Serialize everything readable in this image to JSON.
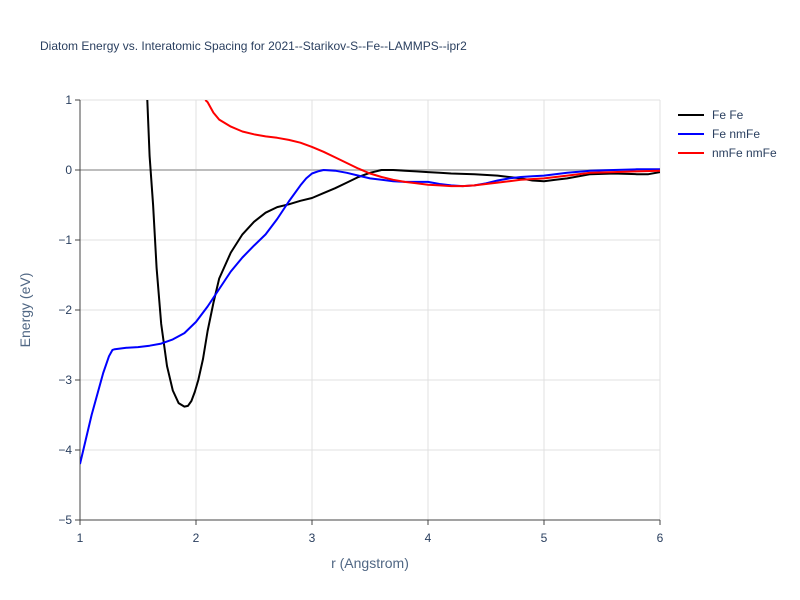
{
  "chart_data": {
    "type": "line",
    "title": "Diatom Energy vs. Interatomic Spacing for 2021--Starikov-S--Fe--LAMMPS--ipr2",
    "xlabel": "r (Angstrom)",
    "ylabel": "Energy (eV)",
    "xlim": [
      1,
      6
    ],
    "ylim": [
      -5,
      1
    ],
    "xticks": [
      1,
      2,
      3,
      4,
      5,
      6
    ],
    "xtick_labels": [
      "1",
      "2",
      "3",
      "4",
      "5",
      "6"
    ],
    "yticks": [
      -5,
      -4,
      -3,
      -2,
      -1,
      0,
      1
    ],
    "ytick_labels": [
      "−5",
      "−4",
      "−3",
      "−2",
      "−1",
      "0",
      "1"
    ],
    "grid": true,
    "legend_position": "top-right",
    "series": [
      {
        "name": "Fe Fe",
        "color": "#000000",
        "x": [
          1.58,
          1.6,
          1.63,
          1.66,
          1.7,
          1.75,
          1.8,
          1.85,
          1.9,
          1.93,
          1.96,
          1.99,
          2.02,
          2.06,
          2.1,
          2.15,
          2.2,
          2.3,
          2.4,
          2.5,
          2.6,
          2.7,
          2.8,
          2.9,
          3.0,
          3.1,
          3.2,
          3.3,
          3.4,
          3.5,
          3.6,
          3.7,
          3.8,
          3.9,
          4.0,
          4.1,
          4.2,
          4.4,
          4.6,
          4.8,
          4.9,
          5.0,
          5.1,
          5.2,
          5.4,
          5.6,
          5.8,
          5.9,
          6.0
        ],
        "y": [
          1.0,
          0.2,
          -0.5,
          -1.4,
          -2.2,
          -2.8,
          -3.15,
          -3.33,
          -3.38,
          -3.37,
          -3.3,
          -3.17,
          -3.0,
          -2.7,
          -2.3,
          -1.9,
          -1.55,
          -1.18,
          -0.92,
          -0.74,
          -0.61,
          -0.53,
          -0.49,
          -0.44,
          -0.4,
          -0.33,
          -0.26,
          -0.18,
          -0.1,
          -0.04,
          0.0,
          0.0,
          -0.01,
          -0.02,
          -0.03,
          -0.04,
          -0.05,
          -0.06,
          -0.08,
          -0.12,
          -0.15,
          -0.16,
          -0.14,
          -0.12,
          -0.06,
          -0.05,
          -0.06,
          -0.06,
          -0.03
        ]
      },
      {
        "name": "Fe nmFe",
        "color": "#0000ff",
        "x": [
          1.0,
          1.05,
          1.1,
          1.15,
          1.2,
          1.25,
          1.28,
          1.3,
          1.4,
          1.5,
          1.6,
          1.7,
          1.8,
          1.9,
          2.0,
          2.1,
          2.2,
          2.3,
          2.4,
          2.5,
          2.6,
          2.7,
          2.8,
          2.9,
          2.95,
          3.0,
          3.05,
          3.1,
          3.2,
          3.3,
          3.4,
          3.5,
          3.6,
          3.7,
          3.8,
          3.9,
          4.0,
          4.1,
          4.2,
          4.3,
          4.4,
          4.5,
          4.6,
          4.7,
          4.8,
          4.9,
          5.0,
          5.2,
          5.4,
          5.6,
          5.8,
          6.0
        ],
        "y": [
          -4.2,
          -3.85,
          -3.5,
          -3.2,
          -2.9,
          -2.66,
          -2.57,
          -2.56,
          -2.54,
          -2.53,
          -2.51,
          -2.48,
          -2.42,
          -2.33,
          -2.17,
          -1.95,
          -1.7,
          -1.45,
          -1.25,
          -1.08,
          -0.92,
          -0.7,
          -0.45,
          -0.22,
          -0.12,
          -0.05,
          -0.02,
          0.0,
          -0.01,
          -0.04,
          -0.08,
          -0.12,
          -0.14,
          -0.16,
          -0.17,
          -0.17,
          -0.17,
          -0.2,
          -0.22,
          -0.23,
          -0.22,
          -0.19,
          -0.15,
          -0.12,
          -0.1,
          -0.09,
          -0.08,
          -0.04,
          -0.01,
          0.0,
          0.01,
          0.01
        ]
      },
      {
        "name": "nmFe nmFe",
        "color": "#ff0000",
        "x": [
          2.08,
          2.1,
          2.15,
          2.2,
          2.3,
          2.4,
          2.5,
          2.6,
          2.7,
          2.8,
          2.9,
          3.0,
          3.1,
          3.2,
          3.3,
          3.4,
          3.5,
          3.6,
          3.7,
          3.8,
          3.9,
          4.0,
          4.1,
          4.2,
          4.3,
          4.4,
          4.5,
          4.6,
          4.7,
          4.8,
          5.0,
          5.2,
          5.4,
          5.6,
          5.8,
          6.0
        ],
        "y": [
          1.0,
          0.97,
          0.82,
          0.72,
          0.62,
          0.55,
          0.51,
          0.48,
          0.46,
          0.43,
          0.39,
          0.33,
          0.26,
          0.18,
          0.1,
          0.02,
          -0.05,
          -0.1,
          -0.14,
          -0.17,
          -0.19,
          -0.21,
          -0.22,
          -0.23,
          -0.23,
          -0.22,
          -0.2,
          -0.18,
          -0.16,
          -0.14,
          -0.12,
          -0.08,
          -0.04,
          -0.03,
          -0.02,
          -0.01
        ]
      }
    ]
  }
}
